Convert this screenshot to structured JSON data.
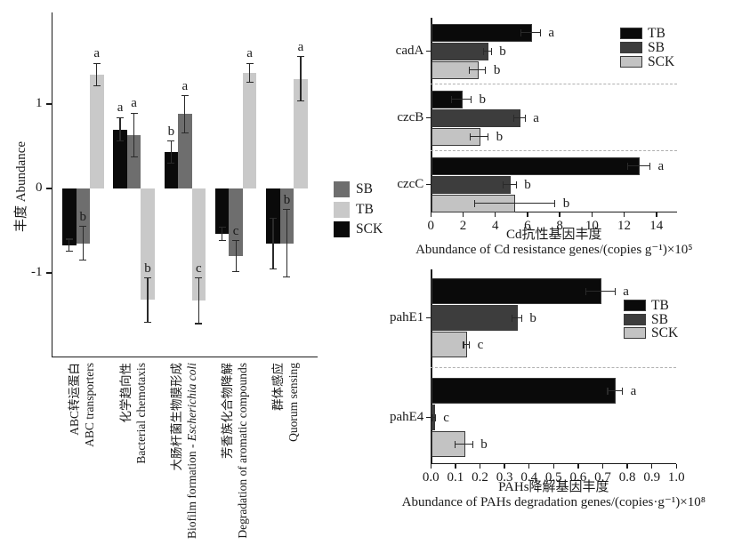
{
  "chart_data": [
    {
      "id": "functional_abundance",
      "type": "bar",
      "orientation": "vertical",
      "ylabel": "丰度 Abundance",
      "yticks": [
        "1",
        "0",
        "-1"
      ],
      "ytick_values": [
        1,
        0,
        -1
      ],
      "ylim": [
        -2.0,
        2.1
      ],
      "grid": false,
      "legend_position": "right",
      "legend": [
        {
          "label": "SB",
          "color": "#6e6e6e"
        },
        {
          "label": "TB",
          "color": "#c9c9c9"
        },
        {
          "label": "SCK",
          "color": "#0a0a0a"
        }
      ],
      "categories": [
        {
          "zh": "ABC转运蛋白",
          "en": "ABC transporters"
        },
        {
          "zh": "化学趋向性",
          "en": "Bacterial chemotaxis"
        },
        {
          "zh": "大肠杆菌生物膜形成",
          "en": "Biofilm formation - ",
          "en_italic": "Escherichia coli"
        },
        {
          "zh": "芳香族化合物降解",
          "en": "Degradation of aromatic compounds"
        },
        {
          "zh": "群体感应",
          "en": "Quorum sensing"
        }
      ],
      "series": [
        {
          "name": "SCK",
          "color": "#0a0a0a",
          "values": [
            -0.67,
            0.7,
            0.43,
            -0.54,
            -0.65
          ],
          "errors": [
            0.07,
            0.14,
            0.13,
            0.08,
            0.3
          ],
          "sig": [
            "",
            "a",
            "b",
            "",
            ""
          ]
        },
        {
          "name": "SB",
          "color": "#6e6e6e",
          "values": [
            -0.65,
            0.63,
            0.88,
            -0.8,
            -0.65
          ],
          "errors": [
            0.2,
            0.26,
            0.22,
            0.18,
            0.4
          ],
          "sig": [
            "b",
            "a",
            "a",
            "c",
            "b"
          ]
        },
        {
          "name": "TB",
          "color": "#c9c9c9",
          "values": [
            1.35,
            -1.32,
            -1.33,
            1.37,
            1.3
          ],
          "errors": [
            0.13,
            0.26,
            0.27,
            0.11,
            0.26
          ],
          "sig": [
            "a",
            "b",
            "c",
            "a",
            "a"
          ]
        }
      ]
    },
    {
      "id": "cd_resistance_genes",
      "type": "bar",
      "orientation": "horizontal",
      "xlabel_zh": "Cd抗性基因丰度",
      "xlabel_en": "Abundance of Cd resistance genes/(copies g⁻¹)×10⁵",
      "xticks": [
        "0",
        "2",
        "4",
        "6",
        "8",
        "10",
        "12",
        "14"
      ],
      "xtick_values": [
        0,
        2,
        4,
        6,
        8,
        10,
        12,
        14
      ],
      "xlim": [
        0,
        15.3
      ],
      "grid": false,
      "legend_position": "top-right",
      "legend": [
        {
          "label": "TB",
          "color": "#0a0a0a"
        },
        {
          "label": "SB",
          "color": "#3d3d3d"
        },
        {
          "label": "SCK",
          "color": "#c3c3c3"
        }
      ],
      "categories": [
        "cadA",
        "czcB",
        "czcC"
      ],
      "series": [
        {
          "name": "TB",
          "color": "#0a0a0a",
          "values": [
            6.2,
            1.9,
            12.9
          ],
          "errors": [
            0.6,
            0.6,
            0.7
          ],
          "sig": [
            "a",
            "b",
            "a"
          ]
        },
        {
          "name": "SB",
          "color": "#3d3d3d",
          "values": [
            3.5,
            5.5,
            4.9
          ],
          "errors": [
            0.25,
            0.35,
            0.4
          ],
          "sig": [
            "b",
            "a",
            "b"
          ]
        },
        {
          "name": "SCK",
          "color": "#c3c3c3",
          "values": [
            2.9,
            3.0,
            5.2
          ],
          "errors": [
            0.5,
            0.55,
            2.5
          ],
          "sig": [
            "b",
            "b",
            "b"
          ]
        }
      ]
    },
    {
      "id": "pahs_degradation_genes",
      "type": "bar",
      "orientation": "horizontal",
      "xlabel_zh": "PAHs降解基因丰度",
      "xlabel_en": "Abundance of PAHs degradation genes/(copies·g⁻¹)×10⁸",
      "xticks": [
        "0.0",
        "0.1",
        "0.2",
        "0.3",
        "0.4",
        "0.5",
        "0.6",
        "0.7",
        "0.8",
        "0.9",
        "1.0"
      ],
      "xtick_values": [
        0,
        0.1,
        0.2,
        0.3,
        0.4,
        0.5,
        0.6,
        0.7,
        0.8,
        0.9,
        1.0
      ],
      "xlim": [
        0,
        1.0
      ],
      "grid": false,
      "legend_position": "top-right",
      "legend": [
        {
          "label": "TB",
          "color": "#0a0a0a"
        },
        {
          "label": "SB",
          "color": "#3d3d3d"
        },
        {
          "label": "SCK",
          "color": "#c3c3c3"
        }
      ],
      "categories": [
        "pahE1",
        "pahE4"
      ],
      "series": [
        {
          "name": "TB",
          "color": "#0a0a0a",
          "values": [
            0.69,
            0.75
          ],
          "errors": [
            0.06,
            0.03
          ],
          "sig": [
            "a",
            "a"
          ]
        },
        {
          "name": "SB",
          "color": "#3d3d3d",
          "values": [
            0.35,
            0.012
          ],
          "errors": [
            0.02,
            0.006
          ],
          "sig": [
            "b",
            "c"
          ]
        },
        {
          "name": "SCK",
          "color": "#c3c3c3",
          "values": [
            0.145,
            0.135
          ],
          "errors": [
            0.012,
            0.035
          ],
          "sig": [
            "c",
            "b"
          ]
        }
      ]
    }
  ]
}
